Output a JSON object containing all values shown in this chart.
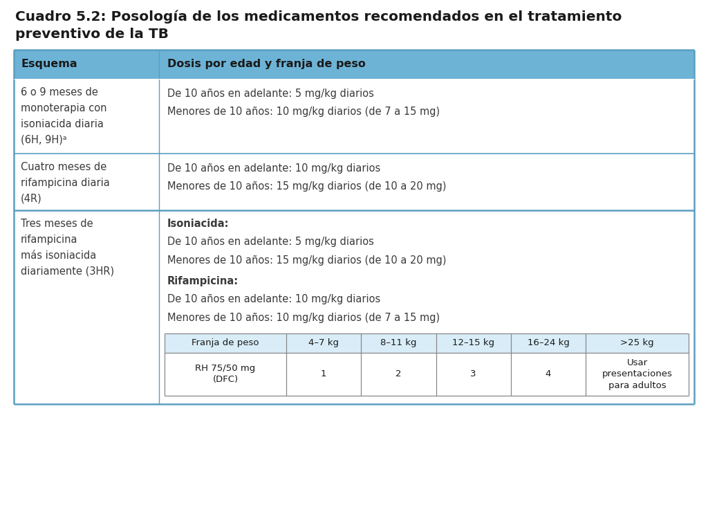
{
  "title_line1": "Cuadro 5.2: Posología de los medicamentos recomendados en el tratamiento",
  "title_line2": "preventivo de la TB",
  "title_fontsize": 14.5,
  "title_color": "#1a1a1a",
  "header_bg": "#6db3d6",
  "header_text_color": "#1a1a1a",
  "header_col1": "Esquema",
  "header_col2": "Dosis por edad y franja de peso",
  "bg_color": "#ffffff",
  "border_color_main": "#5a9fc0",
  "border_color_inner": "#888888",
  "text_color": "#3a3a3a",
  "row1_left": "6 o 9 meses de\nmonoterapia con\nisoniacida diaria\n(6H, 9H)ᵃ",
  "row1_right_line1": "De 10 años en adelante: 5 mg/kg diarios",
  "row1_right_line2": "Menores de 10 años: 10 mg/kg diarios (de 7 a 15 mg)",
  "row2_left": "Cuatro meses de\nrifampicina diaria\n(4R)",
  "row2_right_line1": "De 10 años en adelante: 10 mg/kg diarios",
  "row2_right_line2": "Menores de 10 años: 15 mg/kg diarios (de 10 a 20 mg)",
  "row3_left": "Tres meses de\nrifampicina\nmás isoniacida\ndiariamente (3HR)",
  "row3_right_bold1": "Isoniacida:",
  "row3_right_line1": "De 10 años en adelante: 5 mg/kg diarios",
  "row3_right_line2": "Menores de 10 años: 15 mg/kg diarios (de 10 a 20 mg)",
  "row3_right_bold2": "Rifampicina:",
  "row3_right_line3": "De 10 años en adelante: 10 mg/kg diarios",
  "row3_right_line4": "Menores de 10 años: 10 mg/kg diarios (de 7 a 15 mg)",
  "inner_table_headers": [
    "Franja de peso",
    "4–7 kg",
    "8–11 kg",
    "12–15 kg",
    "16–24 kg",
    ">25 kg"
  ],
  "inner_table_row": [
    "RH 75/50 mg\n(DFC)",
    "1",
    "2",
    "3",
    "4",
    "Usar\npresentaciones\npara adultos"
  ],
  "main_font_size": 10.5,
  "header_font_size": 11.5,
  "inner_table_font_size": 9.5
}
